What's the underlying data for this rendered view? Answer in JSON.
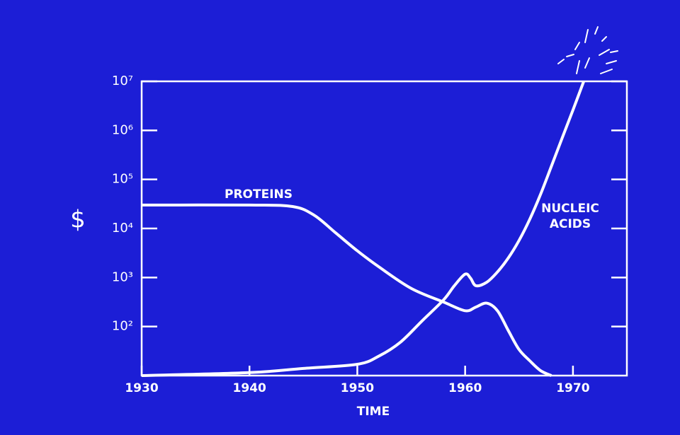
{
  "chart_data": {
    "type": "line",
    "xlabel": "TIME",
    "ylabel": "$",
    "yscale": "log",
    "xlim": [
      1930,
      1975
    ],
    "xticks": [
      1930,
      1940,
      1950,
      1960,
      1970
    ],
    "ylim": [
      10,
      10000000
    ],
    "yticks": [
      {
        "value": 100,
        "label": "10²"
      },
      {
        "value": 1000,
        "label": "10³"
      },
      {
        "value": 10000,
        "label": "10⁴"
      },
      {
        "value": 100000,
        "label": "10⁵"
      },
      {
        "value": 1000000,
        "label": "10⁶"
      },
      {
        "value": 10000000,
        "label": "10⁷"
      }
    ],
    "background": "#1c1ed6",
    "series": [
      {
        "name": "PROTEINS",
        "color": "#ffffff",
        "x": [
          1930,
          1940,
          1944,
          1946,
          1948,
          1950,
          1952,
          1955,
          1958,
          1960,
          1961,
          1962,
          1963,
          1964,
          1965,
          1966,
          1967,
          1968
        ],
        "values": [
          30000,
          30000,
          28000,
          18600,
          8100,
          3500,
          1650,
          600,
          316,
          210,
          250,
          300,
          210,
          83,
          34,
          20,
          12.6,
          10
        ]
      },
      {
        "name": "NUCLEIC ACIDS",
        "color": "#ffffff",
        "x": [
          1930,
          1940,
          1945,
          1950,
          1952,
          1954,
          1956,
          1958,
          1959,
          1960,
          1960.5,
          1961,
          1962,
          1963,
          1964,
          1965,
          1966,
          1967,
          1968,
          1969,
          1970,
          1971
        ],
        "values": [
          10,
          11.5,
          14,
          17,
          25,
          48,
          130,
          350,
          680,
          1170,
          970,
          680,
          800,
          1300,
          2500,
          5700,
          15500,
          50000,
          186000,
          700000,
          2600000,
          10000000
        ]
      }
    ]
  }
}
